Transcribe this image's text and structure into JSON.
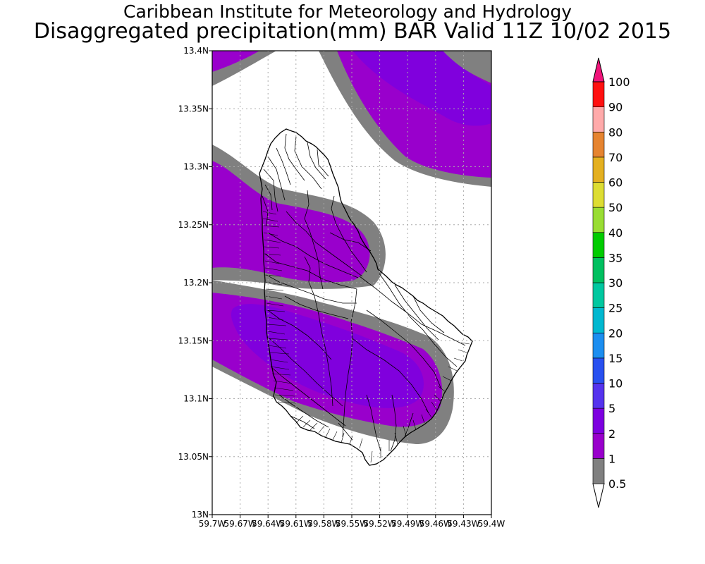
{
  "header": {
    "institute": "Caribbean Institute for Meteorology and Hydrology",
    "product": "Disaggregated precipitation(mm) BAR Valid 11Z 10/02 2015"
  },
  "map": {
    "lat_range": [
      13.0,
      13.4
    ],
    "lon_range": [
      -59.7,
      -59.4
    ],
    "lat_ticks": [
      "13N",
      "13.05N",
      "13.1N",
      "13.15N",
      "13.2N",
      "13.25N",
      "13.3N",
      "13.35N",
      "13.4N"
    ],
    "lon_ticks": [
      "59.7W",
      "59.67W",
      "59.64W",
      "59.61W",
      "59.58W",
      "59.55W",
      "59.52W",
      "59.49W",
      "59.46W",
      "59.43W",
      "59.4W"
    ],
    "grid": true,
    "fill_colors": {
      "0.5-1": "#808080",
      "1-2": "#9900cc",
      "2-5": "#8000dd"
    }
  },
  "colorbar": {
    "levels": [
      "0.5",
      "1",
      "2",
      "5",
      "10",
      "15",
      "20",
      "25",
      "30",
      "35",
      "40",
      "50",
      "60",
      "70",
      "80",
      "90",
      "100"
    ],
    "colors": [
      "#808080",
      "#9900cc",
      "#7d00e0",
      "#5533ee",
      "#2850f0",
      "#1c8ef0",
      "#00b8d0",
      "#00c8a0",
      "#00c060",
      "#00cc00",
      "#99dd33",
      "#dddd33",
      "#e4b020",
      "#e68430",
      "#ffaaaa",
      "#ff1010",
      "#ff4a4a"
    ],
    "under_color": "#ffffff",
    "over_color": "#f0147a"
  }
}
